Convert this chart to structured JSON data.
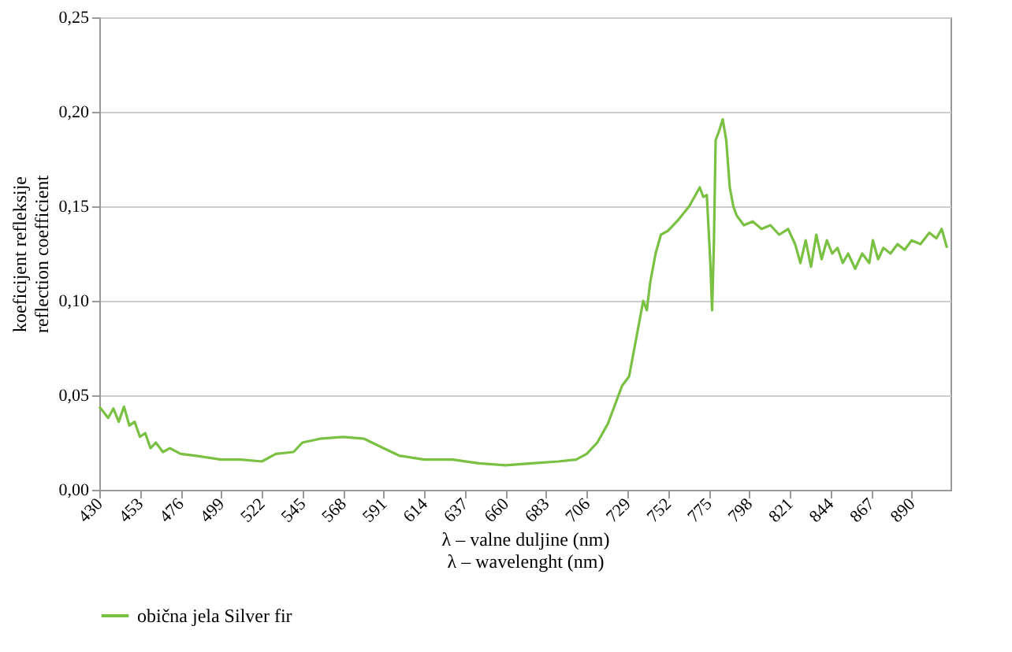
{
  "chart_data": {
    "type": "line",
    "xlabel": "λ – valne duljine (nm)\nλ – wavelenght (nm)",
    "ylabel": "koeficijent refleksije\nreflection coefficient",
    "xlim": [
      430,
      912
    ],
    "xticks": [
      430,
      453,
      476,
      499,
      522,
      545,
      568,
      591,
      614,
      637,
      660,
      683,
      706,
      729,
      752,
      775,
      798,
      821,
      844,
      867,
      890
    ],
    "ylim": [
      0,
      0.25
    ],
    "yticks": [
      {
        "value": 0,
        "label": "0,00"
      },
      {
        "value": 0.05,
        "label": "0,05"
      },
      {
        "value": 0.1,
        "label": "0,10"
      },
      {
        "value": 0.15,
        "label": "0,15"
      },
      {
        "value": 0.2,
        "label": "0,20"
      },
      {
        "value": 0.25,
        "label": "0,25"
      }
    ],
    "grid": "y",
    "legend": "bottom",
    "marker": "none",
    "line_style": "solid",
    "series": [
      {
        "name": "obična jela   Silver fir",
        "color": "#7ac143",
        "x": [
          430,
          435,
          438,
          441,
          444,
          447,
          450,
          453,
          456,
          459,
          462,
          466,
          470,
          476,
          485,
          499,
          510,
          522,
          530,
          540,
          545,
          555,
          568,
          580,
          591,
          600,
          614,
          630,
          645,
          660,
          675,
          690,
          700,
          706,
          712,
          718,
          722,
          726,
          730,
          733,
          736,
          738,
          740,
          742,
          745,
          748,
          752,
          758,
          764,
          770,
          772,
          774,
          776,
          777,
          778,
          779,
          781,
          783,
          785,
          787,
          789,
          791,
          795,
          800,
          805,
          810,
          815,
          820,
          824,
          827,
          830,
          833,
          836,
          839,
          842,
          845,
          848,
          851,
          854,
          858,
          862,
          866,
          868,
          871,
          874,
          878,
          882,
          886,
          890,
          895,
          900,
          904,
          907,
          910
        ],
        "values": [
          0.044,
          0.038,
          0.043,
          0.036,
          0.044,
          0.034,
          0.036,
          0.028,
          0.03,
          0.022,
          0.025,
          0.02,
          0.022,
          0.019,
          0.018,
          0.016,
          0.016,
          0.015,
          0.019,
          0.02,
          0.025,
          0.027,
          0.028,
          0.027,
          0.022,
          0.018,
          0.016,
          0.016,
          0.014,
          0.013,
          0.014,
          0.015,
          0.016,
          0.019,
          0.025,
          0.035,
          0.045,
          0.055,
          0.06,
          0.075,
          0.09,
          0.1,
          0.095,
          0.11,
          0.125,
          0.135,
          0.137,
          0.143,
          0.15,
          0.16,
          0.155,
          0.156,
          0.12,
          0.095,
          0.13,
          0.185,
          0.19,
          0.196,
          0.185,
          0.16,
          0.15,
          0.145,
          0.14,
          0.142,
          0.138,
          0.14,
          0.135,
          0.138,
          0.13,
          0.12,
          0.132,
          0.118,
          0.135,
          0.122,
          0.132,
          0.125,
          0.128,
          0.12,
          0.125,
          0.117,
          0.125,
          0.12,
          0.132,
          0.122,
          0.128,
          0.125,
          0.13,
          0.127,
          0.132,
          0.13,
          0.136,
          0.133,
          0.138,
          0.128
        ]
      }
    ]
  }
}
